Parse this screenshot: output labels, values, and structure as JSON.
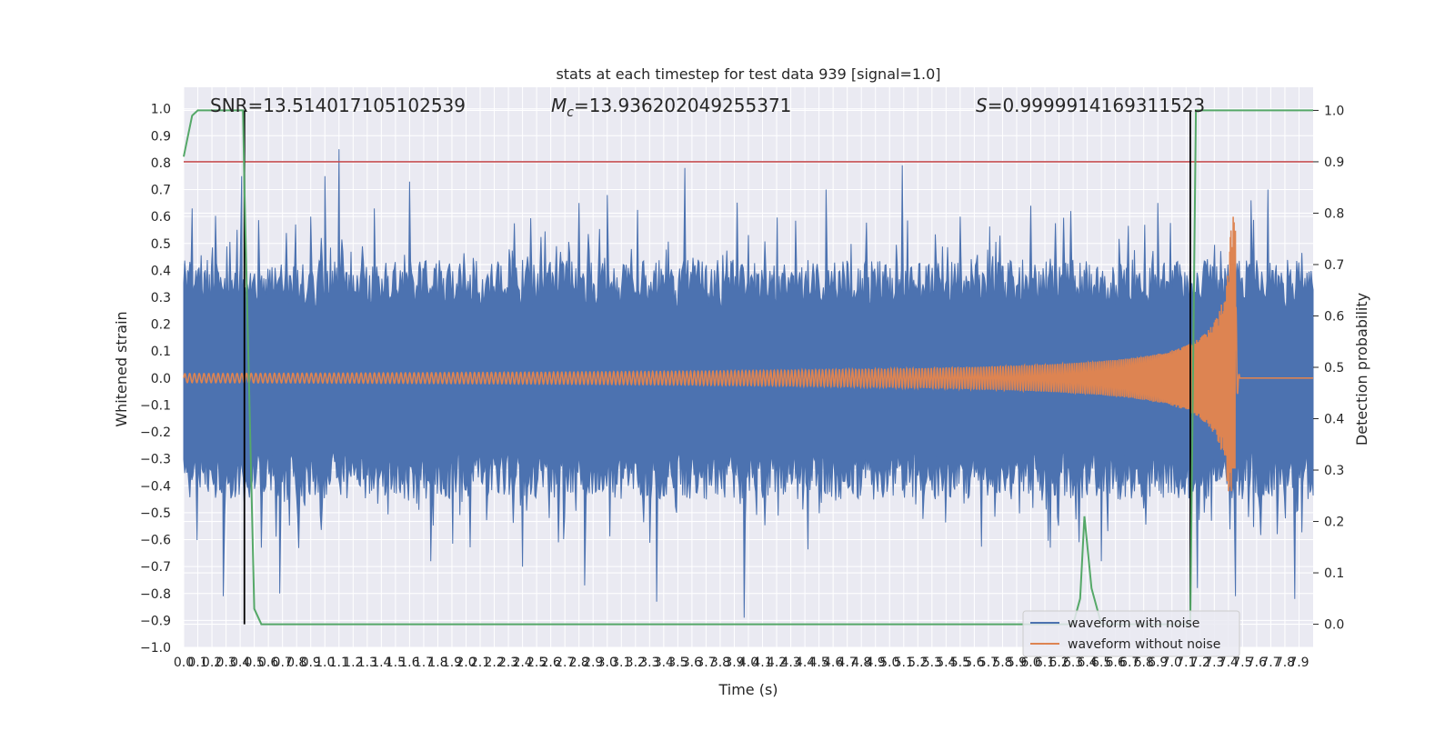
{
  "chart_data": {
    "type": "line",
    "title": "stats at each timestep for test data 939 [signal=1.0]",
    "xlabel": "Time (s)",
    "ylabel_left": "Whitened strain",
    "ylabel_right": "Detection probability",
    "xlim": [
      0.0,
      8.0
    ],
    "ylim_left": [
      -1.0,
      1.08
    ],
    "ylim_right": [
      -0.045,
      1.045
    ],
    "x_ticks": [
      "0.0",
      "0.1",
      "0.2",
      "0.3",
      "0.4",
      "0.5",
      "0.6",
      "0.7",
      "0.8",
      "0.9",
      "1.0",
      "1.1",
      "1.2",
      "1.3",
      "1.4",
      "1.5",
      "1.6",
      "1.7",
      "1.8",
      "1.9",
      "2.0",
      "2.1",
      "2.2",
      "2.3",
      "2.4",
      "2.5",
      "2.6",
      "2.7",
      "2.8",
      "2.9",
      "3.0",
      "3.1",
      "3.2",
      "3.3",
      "3.4",
      "3.5",
      "3.6",
      "3.7",
      "3.8",
      "3.9",
      "4.0",
      "4.1",
      "4.2",
      "4.3",
      "4.4",
      "4.5",
      "4.6",
      "4.7",
      "4.8",
      "4.9",
      "5.0",
      "5.1",
      "5.2",
      "5.3",
      "5.4",
      "5.5",
      "5.6",
      "5.7",
      "5.8",
      "5.9",
      "6.0",
      "6.1",
      "6.2",
      "6.3",
      "6.4",
      "6.5",
      "6.6",
      "6.7",
      "6.8",
      "6.9",
      "7.0",
      "7.1",
      "7.2",
      "7.3",
      "7.4",
      "7.5",
      "7.6",
      "7.7",
      "7.8",
      "7.9"
    ],
    "y_ticks_left": [
      "1.0",
      "0.9",
      "0.8",
      "0.7",
      "0.6",
      "0.5",
      "0.4",
      "0.3",
      "0.2",
      "0.1",
      "0.0",
      "−0.1",
      "−0.2",
      "−0.3",
      "−0.4",
      "−0.5",
      "−0.6",
      "−0.7",
      "−0.8",
      "−0.9",
      "−1.0"
    ],
    "y_ticks_right": [
      "1.0",
      "0.9",
      "0.8",
      "0.7",
      "0.6",
      "0.5",
      "0.4",
      "0.3",
      "0.2",
      "0.1",
      "0.0"
    ],
    "annotations": {
      "snr": "SNR=13.514017105102539",
      "mc_symbol": "M",
      "mc_sub": "c",
      "mc_value": "=13.936202049255371",
      "s_symbol": "S",
      "s_value": "=0.9999914169311523"
    },
    "threshold": {
      "axis": "right",
      "value": 0.9,
      "color": "#c44e52"
    },
    "event_markers_x": [
      0.43,
      7.13
    ],
    "series": [
      {
        "name": "waveform with noise",
        "axis": "left",
        "color": "#4c72b0",
        "envelope": {
          "typical_upper": 0.42,
          "typical_lower": -0.42
        },
        "spikes": [
          [
            0.06,
            0.63
          ],
          [
            0.28,
            -0.81
          ],
          [
            0.41,
            0.75
          ],
          [
            0.55,
            -0.63
          ],
          [
            0.68,
            -0.8
          ],
          [
            0.9,
            0.6
          ],
          [
            1.0,
            0.75
          ],
          [
            1.1,
            0.85
          ],
          [
            1.35,
            0.63
          ],
          [
            1.6,
            0.73
          ],
          [
            1.75,
            -0.68
          ],
          [
            2.4,
            -0.7
          ],
          [
            2.8,
            0.65
          ],
          [
            2.84,
            -0.77
          ],
          [
            3.0,
            0.68
          ],
          [
            3.35,
            -0.83
          ],
          [
            3.55,
            0.78
          ],
          [
            3.97,
            -0.89
          ],
          [
            4.55,
            0.7
          ],
          [
            5.09,
            0.79
          ],
          [
            5.5,
            0.6
          ],
          [
            6.0,
            0.64
          ],
          [
            6.5,
            -0.68
          ],
          [
            6.9,
            0.65
          ],
          [
            7.18,
            -0.78
          ],
          [
            7.45,
            -0.81
          ],
          [
            7.56,
            0.66
          ],
          [
            7.68,
            0.7
          ],
          [
            7.87,
            -0.82
          ]
        ]
      },
      {
        "name": "waveform without noise",
        "axis": "left",
        "color": "#dd8452",
        "chirp": {
          "t_merge": 7.45,
          "peak_pos": 0.6,
          "peak_neg": -0.42
        }
      },
      {
        "name": "detection probability",
        "axis": "right",
        "color": "#55a868",
        "x": [
          0.0,
          0.06,
          0.1,
          0.42,
          0.43,
          0.5,
          0.55,
          6.3,
          6.35,
          6.38,
          6.43,
          6.5,
          7.09,
          7.13,
          7.17,
          8.0
        ],
        "y": [
          0.91,
          0.99,
          1.0,
          1.0,
          0.85,
          0.03,
          0.0,
          0.0,
          0.05,
          0.21,
          0.07,
          0.0,
          0.0,
          0.0,
          1.0,
          1.0
        ]
      }
    ],
    "legend": {
      "position": "lower-right",
      "entries": [
        "waveform with noise",
        "waveform without noise"
      ]
    },
    "grid": true
  }
}
